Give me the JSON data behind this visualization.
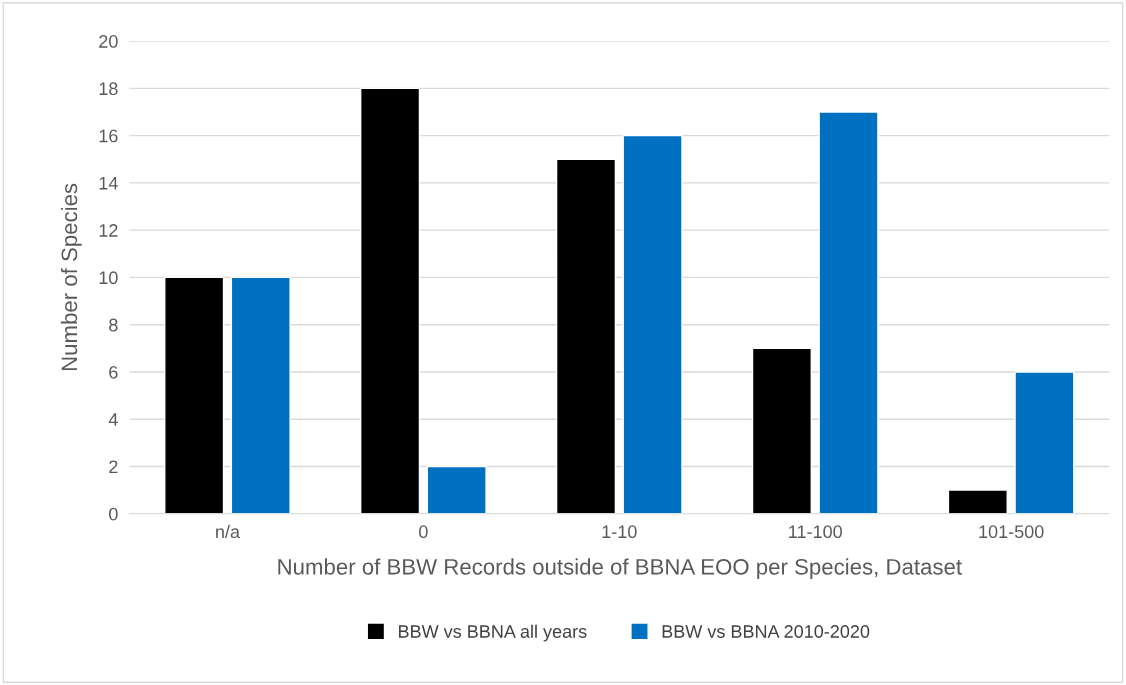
{
  "chart_data": {
    "type": "bar",
    "xlabel": "Number of BBW Records outside of BBNA EOO per Species, Dataset",
    "ylabel": "Number of Species",
    "categories": [
      "n/a",
      "0",
      "1-10",
      "11-100",
      "101-500"
    ],
    "series": [
      {
        "name": "BBW vs BBNA all years",
        "color": "#000000",
        "values": [
          10,
          18,
          15,
          7,
          1
        ]
      },
      {
        "name": "BBW vs BBNA 2010-2020",
        "color": "#0070c0",
        "values": [
          10,
          2,
          16,
          17,
          6
        ]
      }
    ],
    "ylim": [
      0,
      20
    ],
    "yticks": [
      0,
      2,
      4,
      6,
      8,
      10,
      12,
      14,
      16,
      18,
      20
    ],
    "grid": "y",
    "legend": "bottom"
  }
}
